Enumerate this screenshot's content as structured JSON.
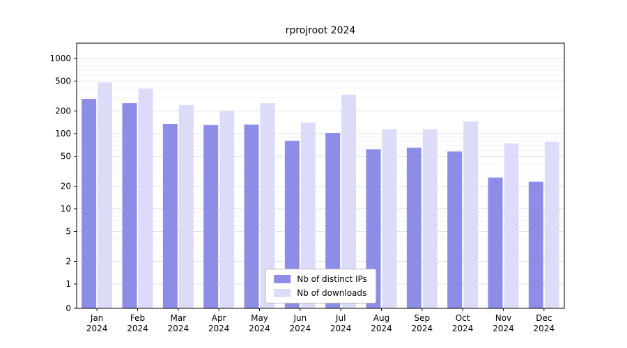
{
  "chart_data": {
    "type": "bar",
    "title": "rprojroot 2024",
    "categories": [
      "Jan 2024",
      "Feb 2024",
      "Mar 2024",
      "Apr 2024",
      "May 2024",
      "Jun 2024",
      "Jul 2024",
      "Aug 2024",
      "Sep 2024",
      "Oct 2024",
      "Nov 2024",
      "Dec 2024"
    ],
    "x_tick_labels": [
      [
        "Jan",
        "2024"
      ],
      [
        "Feb",
        "2024"
      ],
      [
        "Mar",
        "2024"
      ],
      [
        "Apr",
        "2024"
      ],
      [
        "May",
        "2024"
      ],
      [
        "Jun",
        "2024"
      ],
      [
        "Jul",
        "2024"
      ],
      [
        "Aug",
        "2024"
      ],
      [
        "Sep",
        "2024"
      ],
      [
        "Oct",
        "2024"
      ],
      [
        "Nov",
        "2024"
      ],
      [
        "Dec",
        "2024"
      ]
    ],
    "series": [
      {
        "name": "Nb of distinct IPs",
        "color": "#8d8de8",
        "values": [
          290,
          255,
          135,
          130,
          132,
          80,
          102,
          62,
          65,
          58,
          26,
          23
        ]
      },
      {
        "name": "Nb of downloads",
        "color": "#dcdcf8",
        "values": [
          480,
          395,
          240,
          200,
          255,
          140,
          330,
          115,
          115,
          145,
          74,
          78
        ]
      }
    ],
    "y_axis": {
      "scale": "log",
      "ticks": [
        0,
        1,
        2,
        5,
        10,
        20,
        50,
        100,
        200,
        500,
        1000
      ],
      "range_log": [
        1,
        1000
      ]
    },
    "grid": true,
    "legend": {
      "position": "lower center"
    },
    "colors": {
      "major_grid": "#e2e2e8",
      "minor_grid": "#f1f1f5",
      "axis": "#000000"
    }
  }
}
